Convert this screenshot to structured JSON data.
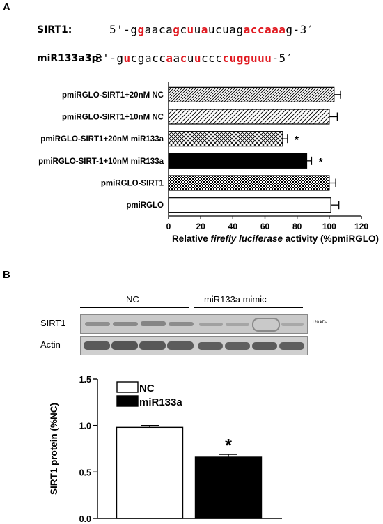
{
  "panels": {
    "a": "A",
    "b": "B"
  },
  "sequences": {
    "sirt1": {
      "name": "SIRT1:",
      "segments": [
        {
          "t": "5'-g",
          "c": false,
          "u": false
        },
        {
          "t": "g",
          "c": true,
          "u": false
        },
        {
          "t": "aaca",
          "c": false,
          "u": false
        },
        {
          "t": "g",
          "c": true,
          "u": false
        },
        {
          "t": "c",
          "c": false,
          "u": false
        },
        {
          "t": "u",
          "c": true,
          "u": false
        },
        {
          "t": "u",
          "c": false,
          "u": false
        },
        {
          "t": "a",
          "c": true,
          "u": false
        },
        {
          "t": "ucuag",
          "c": false,
          "u": false
        },
        {
          "t": "accaaa",
          "c": true,
          "u": false
        },
        {
          "t": "g-3′",
          "c": false,
          "u": false
        }
      ]
    },
    "mir": {
      "name": "miR133a3p:",
      "segments": [
        {
          "t": "3'-g",
          "c": false,
          "u": false
        },
        {
          "t": "u",
          "c": true,
          "u": false
        },
        {
          "t": "cgacc",
          "c": false,
          "u": false
        },
        {
          "t": "a",
          "c": true,
          "u": false
        },
        {
          "t": "a",
          "c": false,
          "u": false
        },
        {
          "t": "c",
          "c": true,
          "u": false
        },
        {
          "t": "u",
          "c": false,
          "u": false
        },
        {
          "t": "u",
          "c": true,
          "u": false
        },
        {
          "t": "ccc",
          "c": false,
          "u": false
        },
        {
          "t": "cugguuu",
          "c": true,
          "u": true
        },
        {
          "t": "-5′",
          "c": false,
          "u": false
        }
      ]
    }
  },
  "blot": {
    "groups": [
      "NC",
      "miR133a mimic"
    ],
    "rows": [
      "SIRT1",
      "Actin"
    ],
    "size_marker": "120 kDa"
  },
  "chart_data": [
    {
      "type": "bar",
      "orientation": "horizontal",
      "categories": [
        "pmiRGLO-SIRT1+20nM NC",
        "pmiRGLO-SIRT1+10nM NC",
        "pmiRGLO-SIRT1+20nM miR133a",
        "pmiRGLO-SIRT-1+10nM miR133a",
        "pmiRGLO-SIRT1",
        "pmiRGLO"
      ],
      "values": [
        103,
        100,
        71,
        86,
        100,
        101
      ],
      "errors": [
        4,
        5,
        3,
        3,
        4,
        5
      ],
      "patterns": [
        "diag-dense",
        "diag-sparse",
        "crosshatch",
        "solid",
        "checker",
        "white"
      ],
      "annotations": [
        "",
        "",
        "*",
        "*",
        "",
        ""
      ],
      "xlim": [
        0,
        120
      ],
      "xticks": [
        0,
        20,
        40,
        60,
        80,
        100,
        120
      ],
      "xlabel_pre": "Relative ",
      "xlabel_italic": "firefly luciferase",
      "xlabel_post": " activity (%pmiRGLO)",
      "grid": false
    },
    {
      "type": "bar",
      "categories": [
        "NC",
        "miR133a"
      ],
      "values": [
        0.98,
        0.66
      ],
      "errors": [
        0.02,
        0.03
      ],
      "colors": [
        "#ffffff",
        "#000000"
      ],
      "ylim": [
        0.0,
        1.5
      ],
      "yticks": [
        "0.0",
        "0.5",
        "1.0",
        "1.5"
      ],
      "ylabel": "SIRT1 protein (%NC)",
      "annotations": [
        "",
        "*"
      ],
      "legend": [
        {
          "name": "NC",
          "color": "#ffffff"
        },
        {
          "name": "miR133a",
          "color": "#000000"
        }
      ],
      "legend_position": "top-left",
      "grid": false
    }
  ]
}
